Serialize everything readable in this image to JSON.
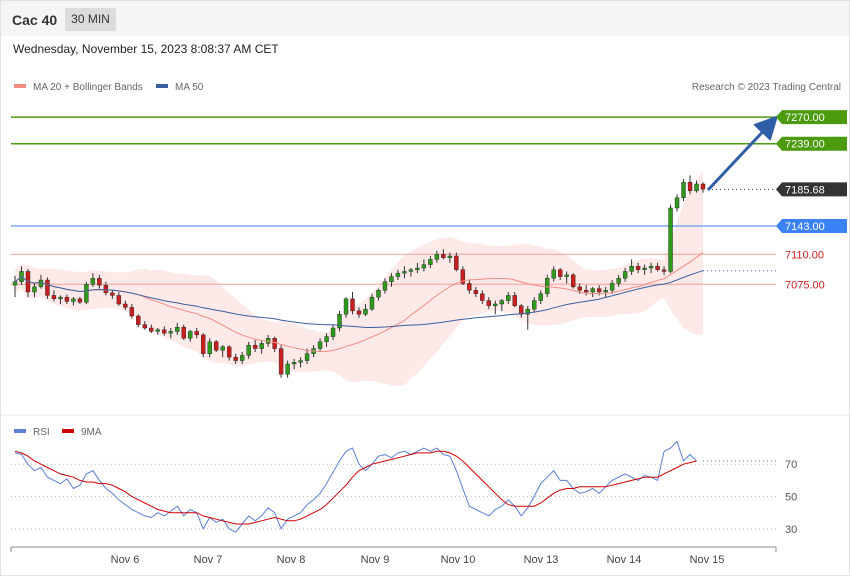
{
  "header": {
    "instrument": "Cac 40",
    "timeframe": "30 MIN",
    "timestamp": "Wednesday, November 15, 2023 8:08:37 AM CET"
  },
  "credit": "Research © 2023 Trading Central",
  "legend_main": [
    {
      "label": "MA 20 + Bollinger Bands",
      "color": "#f28b82"
    },
    {
      "label": "MA 50",
      "color": "#3a5fa0"
    }
  ],
  "legend_rsi": [
    {
      "label": "RSI",
      "color": "#5b7fd6"
    },
    {
      "label": "9MA",
      "color": "#d00000"
    }
  ],
  "chart_data": [
    {
      "type": "candlestick",
      "x_labels": [
        "Nov 6",
        "Nov 7",
        "Nov 8",
        "Nov 9",
        "Nov 10",
        "Nov 13",
        "Nov 14",
        "Nov 15"
      ],
      "ylim": [
        6940,
        7290
      ],
      "levels": [
        {
          "value": 7270.0,
          "label": "7270.00",
          "color": "#4c9a0d",
          "style": "solid",
          "tag": "filled"
        },
        {
          "value": 7239.0,
          "label": "7239.00",
          "color": "#4c9a0d",
          "style": "solid",
          "tag": "filled"
        },
        {
          "value": 7185.68,
          "label": "7185.68",
          "color": "#333333",
          "style": "dotted",
          "tag": "filled"
        },
        {
          "value": 7143.0,
          "label": "7143.00",
          "color": "#3b82f6",
          "style": "solid",
          "tag": "filled"
        },
        {
          "value": 7110.0,
          "label": "7110.00",
          "color": "#f4a09a",
          "style": "solid",
          "tag": "text"
        },
        {
          "value": 7075.0,
          "label": "7075.00",
          "color": "#f4a09a",
          "style": "solid",
          "tag": "text"
        }
      ],
      "projection": {
        "from": 7185,
        "to": 7262
      },
      "candles": [
        [
          7074,
          7085,
          7060,
          7078
        ],
        [
          7078,
          7096,
          7074,
          7090
        ],
        [
          7090,
          7093,
          7060,
          7066
        ],
        [
          7066,
          7076,
          7060,
          7072
        ],
        [
          7072,
          7086,
          7070,
          7080
        ],
        [
          7080,
          7083,
          7058,
          7062
        ],
        [
          7062,
          7068,
          7055,
          7058
        ],
        [
          7058,
          7062,
          7052,
          7060
        ],
        [
          7060,
          7063,
          7052,
          7055
        ],
        [
          7055,
          7060,
          7050,
          7058
        ],
        [
          7058,
          7060,
          7052,
          7054
        ],
        [
          7054,
          7078,
          7052,
          7075
        ],
        [
          7075,
          7088,
          7072,
          7082
        ],
        [
          7082,
          7086,
          7070,
          7074
        ],
        [
          7074,
          7078,
          7062,
          7065
        ],
        [
          7065,
          7068,
          7058,
          7062
        ],
        [
          7062,
          7066,
          7050,
          7052
        ],
        [
          7052,
          7056,
          7045,
          7048
        ],
        [
          7048,
          7052,
          7035,
          7038
        ],
        [
          7038,
          7040,
          7025,
          7028
        ],
        [
          7028,
          7032,
          7022,
          7024
        ],
        [
          7024,
          7028,
          7018,
          7020
        ],
        [
          7020,
          7024,
          7016,
          7022
        ],
        [
          7022,
          7026,
          7015,
          7018
        ],
        [
          7018,
          7024,
          7012,
          7020
        ],
        [
          7020,
          7030,
          7016,
          7025
        ],
        [
          7025,
          7028,
          7010,
          7012
        ],
        [
          7012,
          7022,
          7008,
          7020
        ],
        [
          7020,
          7024,
          7012,
          7016
        ],
        [
          7016,
          7018,
          6990,
          6994
        ],
        [
          6994,
          7012,
          6990,
          7008
        ],
        [
          7008,
          7010,
          6996,
          6998
        ],
        [
          6998,
          7004,
          6990,
          7002
        ],
        [
          7002,
          7004,
          6986,
          6990
        ],
        [
          6990,
          6994,
          6982,
          6986
        ],
        [
          6986,
          6996,
          6982,
          6992
        ],
        [
          6992,
          7008,
          6988,
          7004
        ],
        [
          7004,
          7010,
          6996,
          7000
        ],
        [
          7000,
          7010,
          6994,
          7006
        ],
        [
          7006,
          7016,
          7002,
          7012
        ],
        [
          7012,
          7014,
          6996,
          7000
        ],
        [
          7000,
          7004,
          6966,
          6970
        ],
        [
          6970,
          6986,
          6966,
          6982
        ],
        [
          6982,
          6988,
          6976,
          6984
        ],
        [
          6984,
          6990,
          6978,
          6986
        ],
        [
          6986,
          7000,
          6982,
          6994
        ],
        [
          6994,
          7004,
          6990,
          7000
        ],
        [
          7000,
          7012,
          6996,
          7008
        ],
        [
          7008,
          7018,
          7002,
          7014
        ],
        [
          7014,
          7028,
          7010,
          7024
        ],
        [
          7024,
          7044,
          7020,
          7040
        ],
        [
          7040,
          7060,
          7036,
          7058
        ],
        [
          7058,
          7066,
          7040,
          7044
        ],
        [
          7044,
          7048,
          7036,
          7040
        ],
        [
          7040,
          7052,
          7038,
          7046
        ],
        [
          7046,
          7064,
          7044,
          7060
        ],
        [
          7060,
          7070,
          7056,
          7068
        ],
        [
          7068,
          7082,
          7064,
          7078
        ],
        [
          7078,
          7088,
          7072,
          7084
        ],
        [
          7084,
          7092,
          7080,
          7088
        ],
        [
          7088,
          7096,
          7082,
          7090
        ],
        [
          7090,
          7094,
          7084,
          7092
        ],
        [
          7092,
          7100,
          7088,
          7094
        ],
        [
          7094,
          7104,
          7090,
          7098
        ],
        [
          7098,
          7108,
          7094,
          7104
        ],
        [
          7104,
          7114,
          7100,
          7110
        ],
        [
          7110,
          7116,
          7104,
          7106
        ],
        [
          7106,
          7112,
          7100,
          7108
        ],
        [
          7108,
          7112,
          7090,
          7092
        ],
        [
          7092,
          7096,
          7074,
          7076
        ],
        [
          7076,
          7080,
          7064,
          7068
        ],
        [
          7068,
          7072,
          7060,
          7064
        ],
        [
          7064,
          7068,
          7052,
          7056
        ],
        [
          7056,
          7060,
          7046,
          7050
        ],
        [
          7050,
          7056,
          7040,
          7052
        ],
        [
          7052,
          7058,
          7044,
          7056
        ],
        [
          7056,
          7066,
          7052,
          7062
        ],
        [
          7062,
          7066,
          7048,
          7050
        ],
        [
          7050,
          7052,
          7036,
          7040
        ],
        [
          7040,
          7050,
          7022,
          7046
        ],
        [
          7046,
          7060,
          7042,
          7056
        ],
        [
          7056,
          7068,
          7052,
          7064
        ],
        [
          7064,
          7086,
          7060,
          7082
        ],
        [
          7082,
          7096,
          7078,
          7092
        ],
        [
          7092,
          7094,
          7080,
          7084
        ],
        [
          7084,
          7090,
          7076,
          7086
        ],
        [
          7086,
          7088,
          7070,
          7072
        ],
        [
          7072,
          7076,
          7064,
          7068
        ],
        [
          7068,
          7074,
          7062,
          7066
        ],
        [
          7066,
          7072,
          7060,
          7070
        ],
        [
          7070,
          7074,
          7062,
          7066
        ],
        [
          7066,
          7072,
          7060,
          7068
        ],
        [
          7068,
          7080,
          7064,
          7076
        ],
        [
          7076,
          7086,
          7072,
          7082
        ],
        [
          7082,
          7094,
          7078,
          7090
        ],
        [
          7090,
          7104,
          7086,
          7096
        ],
        [
          7096,
          7100,
          7088,
          7092
        ],
        [
          7092,
          7098,
          7086,
          7094
        ],
        [
          7094,
          7100,
          7088,
          7096
        ],
        [
          7096,
          7100,
          7090,
          7092
        ],
        [
          7092,
          7096,
          7086,
          7090
        ],
        [
          7090,
          7168,
          7088,
          7164
        ],
        [
          7164,
          7180,
          7160,
          7176
        ],
        [
          7176,
          7198,
          7172,
          7194
        ],
        [
          7194,
          7202,
          7180,
          7184
        ],
        [
          7184,
          7196,
          7182,
          7192
        ],
        [
          7192,
          7194,
          7182,
          7186
        ]
      ]
    },
    {
      "type": "line",
      "title": "RSI",
      "ylim": [
        20,
        85
      ],
      "y_ticks": [
        30,
        50,
        70
      ],
      "series": [
        {
          "name": "RSI",
          "color": "#5b7fd6",
          "values": [
            77,
            76,
            70,
            66,
            68,
            62,
            60,
            58,
            61,
            55,
            57,
            64,
            66,
            60,
            55,
            52,
            48,
            45,
            42,
            40,
            38,
            37,
            40,
            38,
            41,
            44,
            38,
            42,
            40,
            30,
            37,
            34,
            36,
            30,
            28,
            33,
            38,
            35,
            38,
            43,
            40,
            30,
            36,
            38,
            40,
            45,
            48,
            52,
            58,
            65,
            72,
            78,
            80,
            70,
            66,
            70,
            75,
            76,
            74,
            77,
            78,
            76,
            78,
            80,
            78,
            80,
            76,
            75,
            66,
            55,
            44,
            42,
            40,
            38,
            42,
            44,
            48,
            44,
            38,
            43,
            50,
            58,
            62,
            66,
            60,
            60,
            55,
            52,
            53,
            55,
            52,
            56,
            60,
            62,
            64,
            62,
            60,
            63,
            62,
            60,
            78,
            80,
            84,
            72,
            76,
            72
          ]
        },
        {
          "name": "9MA",
          "color": "#d00000",
          "values": [
            78,
            77,
            75,
            72,
            70,
            68,
            66,
            64,
            63,
            62,
            60,
            59,
            59,
            58,
            58,
            57,
            55,
            53,
            50,
            48,
            46,
            44,
            42,
            41,
            40,
            40,
            40,
            40,
            40,
            38,
            37,
            36,
            35,
            34,
            33,
            33,
            33,
            34,
            35,
            36,
            37,
            36,
            35,
            35,
            36,
            38,
            40,
            42,
            45,
            49,
            53,
            57,
            62,
            66,
            68,
            70,
            71,
            72,
            73,
            74,
            75,
            76,
            77,
            77,
            77,
            78,
            78,
            77,
            75,
            72,
            68,
            64,
            60,
            56,
            52,
            48,
            45,
            44,
            44,
            44,
            44,
            46,
            49,
            52,
            54,
            55,
            55,
            56,
            56,
            56,
            56,
            56,
            57,
            58,
            59,
            60,
            61,
            62,
            62,
            62,
            64,
            66,
            68,
            70,
            71,
            72
          ]
        }
      ]
    }
  ]
}
